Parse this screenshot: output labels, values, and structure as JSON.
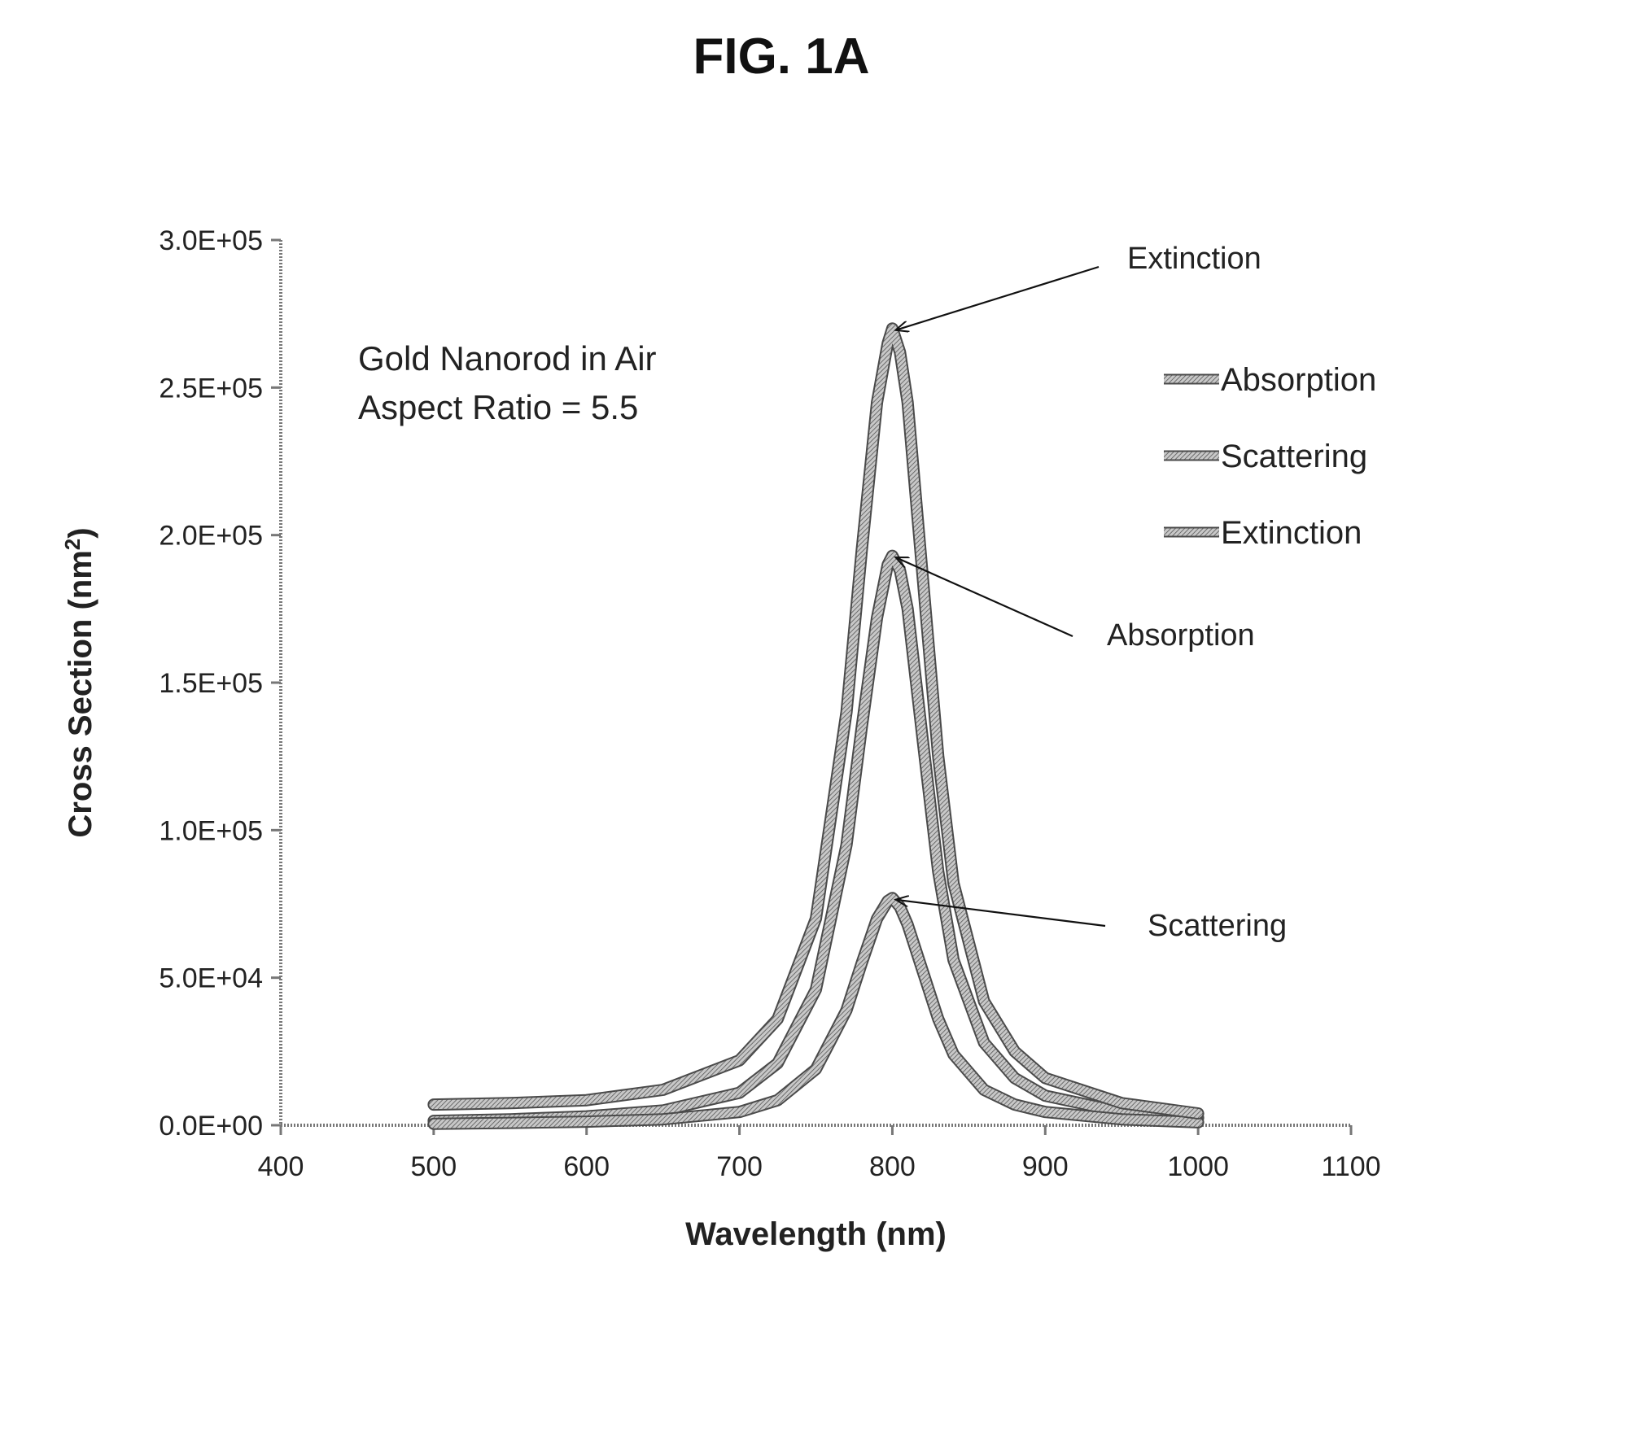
{
  "figure": {
    "label": "FIG. 1A"
  },
  "chart_data": {
    "type": "line",
    "title": "FIG. 1A",
    "xlabel": "Wavelength (nm)",
    "ylabel_main": "Cross Section (nm",
    "ylabel_sup": "2",
    "ylabel_end": ")",
    "xlim": [
      400,
      1100
    ],
    "ylim": [
      0,
      300000
    ],
    "x_ticks": [
      400,
      500,
      600,
      700,
      800,
      900,
      1000,
      1100
    ],
    "y_ticks": [
      0,
      50000,
      100000,
      150000,
      200000,
      250000,
      300000
    ],
    "y_tick_labels": [
      "0.0E+00",
      "5.0E+04",
      "1.0E+05",
      "1.5E+05",
      "2.0E+05",
      "2.5E+05",
      "3.0E+05"
    ],
    "inset_text": [
      "Gold Nanorod in Air",
      "Aspect Ratio = 5.5"
    ],
    "legend_position": "right",
    "series": [
      {
        "name": "Absorption",
        "color": "#8c8c8c",
        "x": [
          500,
          550,
          600,
          650,
          700,
          725,
          750,
          770,
          780,
          790,
          797,
          800,
          805,
          810,
          820,
          830,
          840,
          860,
          880,
          900,
          950,
          1000
        ],
        "y": [
          1500,
          2000,
          3000,
          5000,
          11000,
          21000,
          46000,
          95000,
          135000,
          172000,
          190000,
          193000,
          188000,
          175000,
          130000,
          86000,
          56000,
          28000,
          16000,
          10000,
          4500,
          2500
        ]
      },
      {
        "name": "Scattering",
        "color": "#9a9a9a",
        "x": [
          500,
          550,
          600,
          650,
          700,
          725,
          750,
          770,
          780,
          790,
          797,
          800,
          805,
          810,
          820,
          830,
          840,
          860,
          880,
          900,
          950,
          1000
        ],
        "y": [
          500,
          800,
          1200,
          2000,
          4500,
          8500,
          19000,
          39000,
          55000,
          70000,
          76000,
          77000,
          74000,
          68000,
          52000,
          36000,
          24000,
          12000,
          7000,
          4500,
          2000,
          1000
        ]
      },
      {
        "name": "Extinction",
        "color": "#b0b0b0",
        "x": [
          500,
          550,
          600,
          650,
          700,
          725,
          750,
          770,
          780,
          790,
          797,
          800,
          805,
          810,
          820,
          830,
          840,
          860,
          880,
          900,
          950,
          1000
        ],
        "y": [
          7000,
          7500,
          8500,
          12000,
          22000,
          36000,
          70000,
          140000,
          195000,
          245000,
          265000,
          270000,
          262000,
          245000,
          185000,
          125000,
          82000,
          42000,
          25000,
          16000,
          7500,
          4000
        ]
      }
    ],
    "annotations": [
      {
        "text": "Extinction",
        "target_x": 800,
        "target_y": 270000
      },
      {
        "text": "Absorption",
        "target_x": 800,
        "target_y": 193000
      },
      {
        "text": "Scattering",
        "target_x": 800,
        "target_y": 77000
      }
    ]
  }
}
